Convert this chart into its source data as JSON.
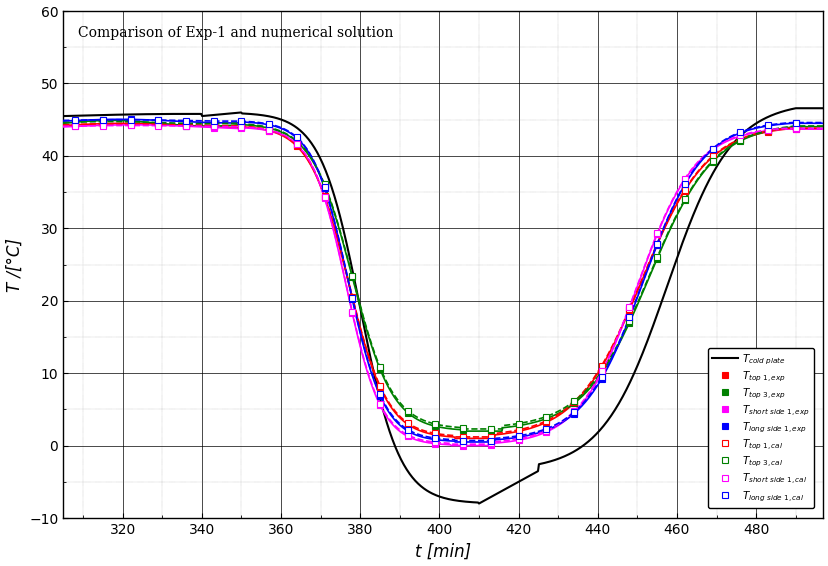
{
  "title": "Comparison of Exp-1 and numerical solution",
  "xlabel": "t [min]",
  "ylabel": "T /[°C]",
  "xlim": [
    305,
    497
  ],
  "ylim": [
    -10,
    60
  ],
  "xticks": [
    320,
    340,
    360,
    380,
    400,
    420,
    440,
    460,
    480
  ],
  "yticks": [
    -10,
    0,
    10,
    20,
    30,
    40,
    50,
    60
  ],
  "legend_loc": "lower right",
  "series": {
    "cold_plate": {
      "label": "$T_{cold\\ plate}$",
      "color": "black",
      "linestyle": "-",
      "linewidth": 1.5,
      "marker": "None",
      "markersize": 0
    },
    "top1_exp": {
      "label": "$T_{top\\ 1,exp}$",
      "color": "red",
      "linestyle": "-",
      "linewidth": 1.2,
      "marker": "s",
      "markersize": 4,
      "markerfacecolor": "red",
      "markeredgecolor": "red"
    },
    "top3_exp": {
      "label": "$T_{top\\ 3,exp}$",
      "color": "green",
      "linestyle": "-",
      "linewidth": 1.2,
      "marker": "s",
      "markersize": 4,
      "markerfacecolor": "green",
      "markeredgecolor": "green"
    },
    "short_side1_exp": {
      "label": "$T_{short\\ side\\ 1,exp}$",
      "color": "magenta",
      "linestyle": "-",
      "linewidth": 1.2,
      "marker": "s",
      "markersize": 4,
      "markerfacecolor": "magenta",
      "markeredgecolor": "magenta"
    },
    "long_side1_exp": {
      "label": "$T_{long\\ side\\ 1,exp}$",
      "color": "blue",
      "linestyle": "-",
      "linewidth": 1.2,
      "marker": "s",
      "markersize": 4,
      "markerfacecolor": "blue",
      "markeredgecolor": "blue"
    },
    "top1_cal": {
      "label": "$T_{top\\ 1,cal}$",
      "color": "red",
      "linestyle": "--",
      "linewidth": 1.2,
      "marker": "s",
      "markersize": 4,
      "markerfacecolor": "white",
      "markeredgecolor": "red"
    },
    "top3_cal": {
      "label": "$T_{top\\ 3,cal}$",
      "color": "green",
      "linestyle": "--",
      "linewidth": 1.2,
      "marker": "s",
      "markersize": 4,
      "markerfacecolor": "white",
      "markeredgecolor": "green"
    },
    "short_side1_cal": {
      "label": "$T_{short\\ side\\ 1,cal}$",
      "color": "magenta",
      "linestyle": "--",
      "linewidth": 1.2,
      "marker": "s",
      "markersize": 4,
      "markerfacecolor": "white",
      "markeredgecolor": "magenta"
    },
    "long_side1_cal": {
      "label": "$T_{long\\ side\\ 1,cal}$",
      "color": "blue",
      "linestyle": "--",
      "linewidth": 1.2,
      "marker": "s",
      "markersize": 4,
      "markerfacecolor": "white",
      "markeredgecolor": "blue"
    }
  }
}
